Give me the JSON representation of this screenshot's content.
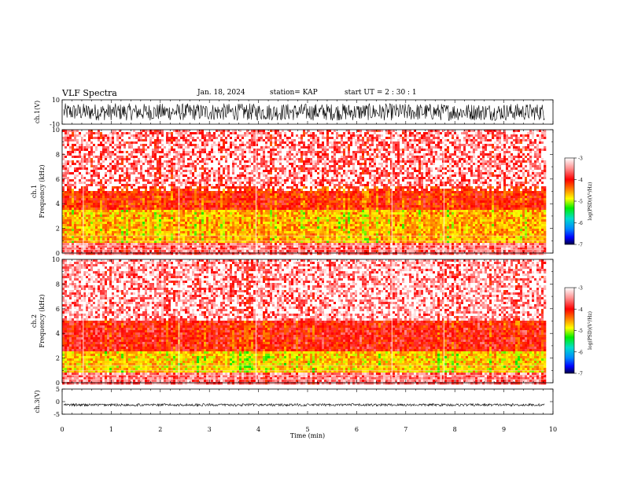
{
  "header": {
    "title": "VLF Spectra",
    "date": "Jan. 18, 2024",
    "station": "station= KAP",
    "start": "start  UT =   2  : 30 : 1"
  },
  "chart_data": [
    {
      "type": "line",
      "ylabel": "ch.1(V)",
      "ylim": [
        -10,
        10
      ],
      "yticks": [
        "10",
        "-10"
      ],
      "xlim": [
        0,
        10
      ],
      "description_values": {
        "waveform_range_V": [
          -7,
          7
        ],
        "mean_V": 0
      },
      "color": "#000000"
    },
    {
      "type": "heatmap",
      "ylabel": "ch.1\nFrequency (kHz)",
      "ylim": [
        0,
        10
      ],
      "yticks": [
        "0",
        "2",
        "4",
        "6",
        "8",
        "10"
      ],
      "xlim": [
        0,
        10
      ],
      "data_extent_min": 9.83,
      "colorbar": {
        "label": "log(PSD)(V²/Hz)",
        "range": [
          -7,
          -3
        ],
        "ticks": [
          "-3",
          "-4",
          "-5",
          "-6",
          "-7"
        ]
      },
      "bands_kHz": [
        {
          "from": 0,
          "to": 0.8,
          "level": -3.2
        },
        {
          "from": 0.8,
          "to": 3.5,
          "level": -4.2
        },
        {
          "from": 3.5,
          "to": 5.5,
          "level": -3.7
        },
        {
          "from": 5.5,
          "to": 10,
          "level": -3.3
        }
      ]
    },
    {
      "type": "heatmap",
      "ylabel": "ch.2\nFrequency (kHz)",
      "ylim": [
        0,
        10
      ],
      "yticks": [
        "0",
        "2",
        "4",
        "6",
        "8",
        "10"
      ],
      "xlim": [
        0,
        10
      ],
      "data_extent_min": 9.83,
      "colorbar": {
        "label": "log(PSD)(V²/Hz)",
        "range": [
          -7,
          -3
        ],
        "ticks": [
          "-3",
          "-4",
          "-5",
          "-6",
          "-7"
        ]
      },
      "bands_kHz": [
        {
          "from": 0,
          "to": 0.8,
          "level": -3.2
        },
        {
          "from": 0.8,
          "to": 2.6,
          "level": -4.3
        },
        {
          "from": 2.6,
          "to": 5.0,
          "level": -3.6
        },
        {
          "from": 5.0,
          "to": 10,
          "level": -3.2
        }
      ]
    },
    {
      "type": "line",
      "ylabel": "ch.3(V)",
      "ylim": [
        -5,
        5
      ],
      "yticks": [
        "5",
        "0",
        "-5"
      ],
      "xlim": [
        0,
        10
      ],
      "description_values": {
        "waveform_range_V": [
          -1.8,
          -0.8
        ],
        "mean_V": -1.3
      },
      "color": "#000000"
    }
  ],
  "xaxis": {
    "label": "Time (min)",
    "ticks": [
      "0",
      "1",
      "2",
      "3",
      "4",
      "5",
      "6",
      "7",
      "8",
      "9",
      "10"
    ]
  }
}
